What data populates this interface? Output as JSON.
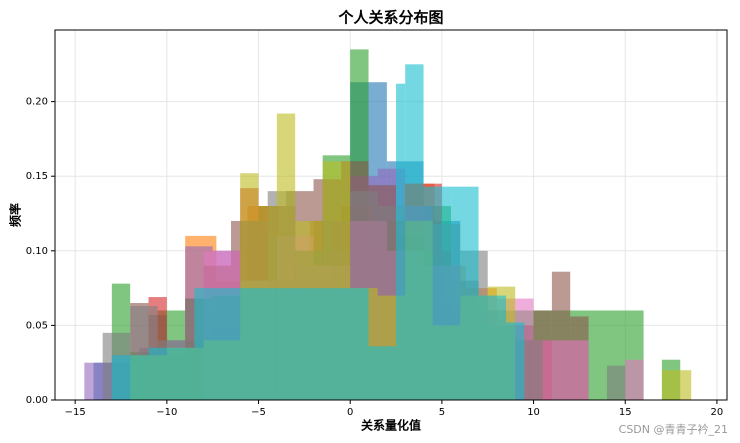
{
  "chart_data": {
    "type": "histogram",
    "title": "个人关系分布图",
    "x_label": "关系量化值",
    "y_label": "频率",
    "watermark": "CSDN @青青子衿_21",
    "xlim": [
      -16.1,
      20.55
    ],
    "ylim": [
      0,
      0.248
    ],
    "xticks": [
      {
        "value": -15,
        "label": "−15"
      },
      {
        "value": -10,
        "label": "−10"
      },
      {
        "value": -5,
        "label": "−5"
      },
      0,
      5,
      10,
      15,
      20
    ],
    "yticks": [
      {
        "value": 0,
        "label": "0.00"
      },
      {
        "value": 0.05,
        "label": "0.05"
      },
      {
        "value": 0.1,
        "label": "0.10"
      },
      {
        "value": 0.15,
        "label": "0.15"
      },
      {
        "value": 0.2,
        "label": "0.20"
      }
    ],
    "grid": true,
    "opacity": 0.6,
    "series": [
      {
        "color": "#1f77b4",
        "bins": [
          -14,
          -12,
          -10,
          -8,
          -6,
          -4,
          -2,
          0,
          2,
          4,
          6,
          8,
          10
        ],
        "values": [
          0.025,
          0.03,
          0.035,
          0.045,
          0.07,
          0.09,
          0.12,
          0.213,
          0.16,
          0.12,
          0.06,
          0.05
        ]
      },
      {
        "color": "#ff7f0e",
        "bins": [
          -9,
          -7.3,
          -5.6,
          -3.9,
          -2.2,
          -0.5,
          1.2,
          2.9,
          4.6,
          6.3,
          8,
          9.7
        ],
        "values": [
          0.11,
          0.08,
          0.13,
          0.1,
          0.12,
          0.13,
          0.12,
          0.145,
          0.09,
          0.075,
          0.05
        ]
      },
      {
        "color": "#2ca02c",
        "bins": [
          -13,
          -12,
          -10.5,
          -9,
          -7.5,
          -6,
          -4.5,
          -3,
          -1.5,
          0,
          1,
          2.5,
          4,
          5.5,
          16,
          17,
          18,
          19
        ],
        "values": [
          0.078,
          0.032,
          0.06,
          0.04,
          0.05,
          0.065,
          0.08,
          0.1,
          0.164,
          0.235,
          0.12,
          0.11,
          0.13,
          0.06,
          0,
          0.027,
          0,
          0.023
        ]
      },
      {
        "color": "#d62728",
        "bins": [
          -11,
          -10,
          -9,
          -8,
          -6,
          -5,
          -3,
          -1,
          1,
          3,
          5,
          7,
          11,
          12
        ],
        "values": [
          0.069,
          0.032,
          0.035,
          0.06,
          0.142,
          0.13,
          0.08,
          0.12,
          0.1,
          0.145,
          0.066,
          0.04,
          0,
          0
        ]
      },
      {
        "color": "#9467bd",
        "bins": [
          -14.5,
          -13,
          -11.5,
          -10,
          -9,
          -7.5,
          -6,
          -4.5,
          -3,
          -1.5,
          0,
          1.5,
          3,
          4.5,
          6,
          7.5,
          9
        ],
        "values": [
          0.025,
          0.03,
          0.035,
          0.04,
          0.103,
          0.1,
          0.12,
          0.11,
          0.09,
          0.1,
          0.15,
          0.155,
          0.13,
          0.09,
          0.07,
          0.05
        ]
      },
      {
        "color": "#8c564b",
        "bins": [
          -12,
          -11,
          -10,
          -9,
          -8,
          -6.5,
          -5,
          -3.5,
          -2,
          -0.5,
          1,
          2.5,
          4,
          5.5,
          7,
          8.5,
          10,
          11,
          12,
          13
        ],
        "values": [
          0.065,
          0.057,
          0.03,
          0.068,
          0.09,
          0.12,
          0.13,
          0.14,
          0.148,
          0.16,
          0.144,
          0.12,
          0.1,
          0.08,
          0.06,
          0.05,
          0.06,
          0.086,
          0.056
        ]
      },
      {
        "color": "#e377c2",
        "bins": [
          -8,
          -6,
          -4,
          -2,
          0,
          2,
          4,
          6,
          8,
          10,
          13,
          14,
          15,
          16,
          17
        ],
        "values": [
          0.1,
          0.08,
          0.11,
          0.09,
          0.12,
          0.1,
          0.09,
          0.07,
          0.068,
          0.04,
          0,
          0,
          0.027,
          0
        ]
      },
      {
        "color": "#7f7f7f",
        "bins": [
          -13.5,
          -12,
          -10.5,
          -9,
          -7.5,
          -6,
          -4.5,
          -3,
          -1.5,
          0,
          1.5,
          3,
          4.5,
          6,
          7.5,
          9,
          10.5,
          14,
          15
        ],
        "values": [
          0.045,
          0.063,
          0.04,
          0.068,
          0.07,
          0.08,
          0.14,
          0.1,
          0.12,
          0.14,
          0.13,
          0.1,
          0.118,
          0.1,
          0.05,
          0.04,
          0,
          0.023
        ]
      },
      {
        "color": "#bcbd22",
        "bins": [
          -12,
          -10,
          -8,
          -6,
          -5,
          -4,
          -3,
          -1.5,
          0,
          1.5,
          3,
          4.5,
          6,
          7.5,
          9,
          17,
          18.6
        ],
        "values": [
          0.03,
          0.035,
          0.04,
          0.152,
          0.13,
          0.192,
          0.12,
          0.16,
          0.075,
          0.07,
          0.12,
          0.05,
          0.07,
          0.076,
          0,
          0.02
        ]
      },
      {
        "color": "#17becf",
        "bins": [
          -13,
          -11,
          -8.5,
          -6,
          -3.5,
          -1,
          1,
          2.5,
          3,
          4,
          5.5,
          7,
          8.5,
          9.5
        ],
        "values": [
          0.03,
          0.035,
          0.075,
          0.075,
          0.075,
          0.075,
          0.036,
          0.212,
          0.225,
          0.143,
          0.143,
          0.07,
          0.052
        ]
      }
    ]
  }
}
